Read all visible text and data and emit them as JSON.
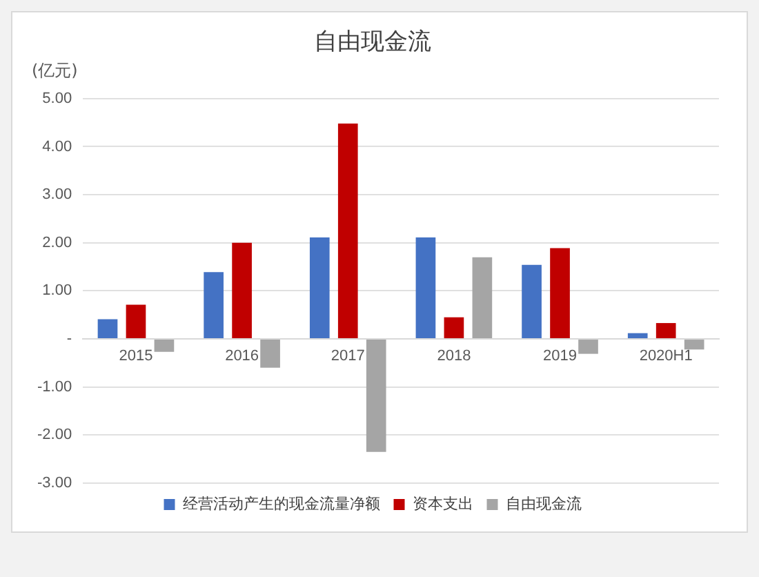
{
  "chart_data": {
    "type": "bar",
    "title": "自由现金流",
    "ylabel": "(亿元)",
    "categories": [
      "2015",
      "2016",
      "2017",
      "2018",
      "2019",
      "2020H1"
    ],
    "series": [
      {
        "name": "经营活动产生的现金流量净额",
        "color": "#4472c4",
        "values": [
          0.41,
          1.39,
          2.11,
          2.11,
          1.54,
          0.12
        ]
      },
      {
        "name": "资本支出",
        "color": "#c00000",
        "values": [
          0.71,
          2.0,
          4.48,
          0.45,
          1.89,
          0.33
        ]
      },
      {
        "name": "自由现金流",
        "color": "#a5a5a5",
        "values": [
          -0.27,
          -0.6,
          -2.35,
          1.7,
          -0.31,
          -0.22
        ]
      }
    ],
    "ylim": [
      -3,
      5
    ],
    "yticks": [
      {
        "value": -3,
        "label": "-3.00"
      },
      {
        "value": -2,
        "label": "-2.00"
      },
      {
        "value": -1,
        "label": "-1.00"
      },
      {
        "value": 0,
        "label": "-"
      },
      {
        "value": 1,
        "label": "1.00"
      },
      {
        "value": 2,
        "label": "2.00"
      },
      {
        "value": 3,
        "label": "3.00"
      },
      {
        "value": 4,
        "label": "4.00"
      },
      {
        "value": 5,
        "label": "5.00"
      }
    ],
    "grid": "y",
    "legend": "bottom"
  }
}
